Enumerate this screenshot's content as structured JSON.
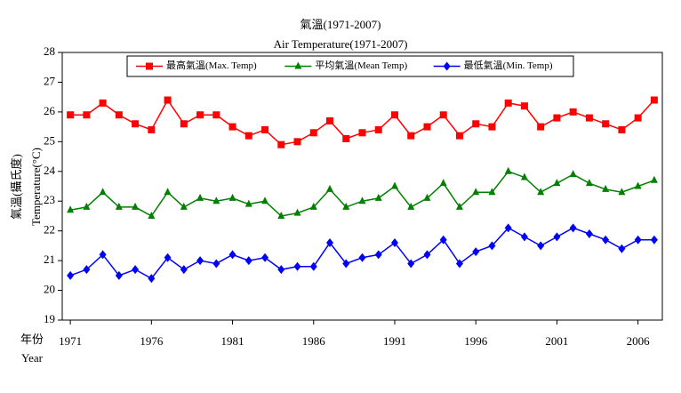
{
  "chart_data": {
    "type": "line",
    "title": "氣溫(1971-2007)",
    "subtitle": "Air Temperature(1971-2007)",
    "y_label": "氣溫(攝氏度)",
    "y_label_en": "Temperature(°C)",
    "x_label": "年份",
    "x_label_en": "Year",
    "x": [
      1971,
      1972,
      1973,
      1974,
      1975,
      1976,
      1977,
      1978,
      1979,
      1980,
      1981,
      1982,
      1983,
      1984,
      1985,
      1986,
      1987,
      1988,
      1989,
      1990,
      1991,
      1992,
      1993,
      1994,
      1995,
      1996,
      1997,
      1998,
      1999,
      2000,
      2001,
      2002,
      2003,
      2004,
      2005,
      2006,
      2007
    ],
    "series": [
      {
        "name": "最高氣溫(Max. Temp)",
        "color": "#ff0000",
        "marker": "square",
        "values": [
          25.9,
          25.9,
          26.3,
          25.9,
          25.6,
          25.4,
          26.4,
          25.6,
          25.9,
          25.9,
          25.5,
          25.2,
          25.4,
          24.9,
          25.0,
          25.3,
          25.7,
          25.1,
          25.3,
          25.4,
          25.9,
          25.2,
          25.5,
          25.9,
          25.2,
          25.6,
          25.5,
          26.3,
          26.2,
          25.5,
          25.8,
          26.0,
          25.8,
          25.6,
          25.4,
          25.8,
          26.4
        ]
      },
      {
        "name": "平均氣溫(Mean Temp)",
        "color": "#008000",
        "marker": "triangle",
        "values": [
          22.7,
          22.8,
          23.3,
          22.8,
          22.8,
          22.5,
          23.3,
          22.8,
          23.1,
          23.0,
          23.1,
          22.9,
          23.0,
          22.5,
          22.6,
          22.8,
          23.4,
          22.8,
          23.0,
          23.1,
          23.5,
          22.8,
          23.1,
          23.6,
          22.8,
          23.3,
          23.3,
          24.0,
          23.8,
          23.3,
          23.6,
          23.9,
          23.6,
          23.4,
          23.3,
          23.5,
          23.7
        ]
      },
      {
        "name": "最低氣溫(Min. Temp)",
        "color": "#0000ff",
        "marker": "diamond",
        "values": [
          20.5,
          20.7,
          21.2,
          20.5,
          20.7,
          20.4,
          21.1,
          20.7,
          21.0,
          20.9,
          21.2,
          21.0,
          21.1,
          20.7,
          20.8,
          20.8,
          21.6,
          20.9,
          21.1,
          21.2,
          21.6,
          20.9,
          21.2,
          21.7,
          20.9,
          21.3,
          21.5,
          22.1,
          21.8,
          21.5,
          21.8,
          22.1,
          21.9,
          21.7,
          21.4,
          21.7,
          21.7
        ]
      }
    ],
    "xlim": [
      1970.5,
      2007.5
    ],
    "xticks": [
      1971,
      1976,
      1981,
      1986,
      1991,
      1996,
      2001,
      2006
    ],
    "ylim": [
      19,
      28
    ],
    "yticks": [
      19,
      20,
      21,
      22,
      23,
      24,
      25,
      26,
      27,
      28
    ],
    "grid": false,
    "legend": "top"
  }
}
